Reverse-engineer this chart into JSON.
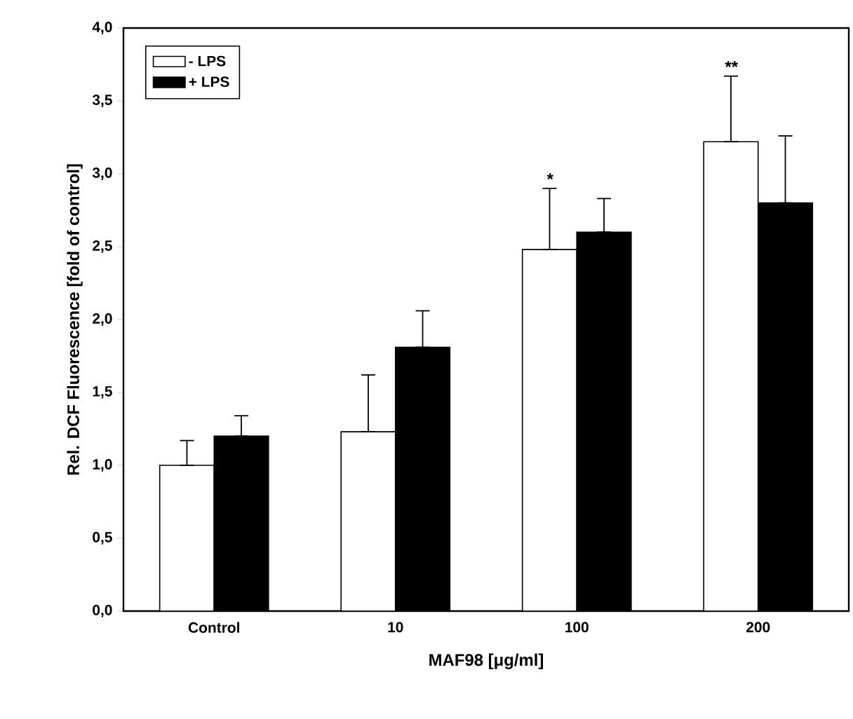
{
  "chart_data": {
    "type": "bar",
    "categories": [
      "Control",
      "10",
      "100",
      "200"
    ],
    "xlabel": "MAF98 [μg/ml]",
    "ylabel": "Rel. DCF Fluorescence [fold of control]",
    "ylim": [
      0,
      4
    ],
    "yticks": [
      {
        "value": 0,
        "label": "0,0"
      },
      {
        "value": 0.5,
        "label": "0,5"
      },
      {
        "value": 1,
        "label": "1,0"
      },
      {
        "value": 1.5,
        "label": "1,5"
      },
      {
        "value": 2,
        "label": "2,0"
      },
      {
        "value": 2.5,
        "label": "2,5"
      },
      {
        "value": 3,
        "label": "3,0"
      },
      {
        "value": 3.5,
        "label": "3,5"
      },
      {
        "value": 4,
        "label": "4,0"
      }
    ],
    "series": [
      {
        "name": "- LPS",
        "color": "#ffffff",
        "values": [
          1.0,
          1.23,
          2.48,
          3.22
        ],
        "errors": [
          [
            1.0,
            1.17
          ],
          [
            1.23,
            1.62
          ],
          [
            2.48,
            2.9
          ],
          [
            3.22,
            3.67
          ]
        ]
      },
      {
        "name": "+ LPS",
        "color": "#000000",
        "values": [
          1.2,
          1.81,
          2.6,
          2.8
        ],
        "errors": [
          [
            1.2,
            1.34
          ],
          [
            1.81,
            2.06
          ],
          [
            2.6,
            2.83
          ],
          [
            2.8,
            3.26
          ]
        ]
      }
    ],
    "annotations": [
      "*",
      "**"
    ],
    "legend": "top left",
    "grid": false
  }
}
